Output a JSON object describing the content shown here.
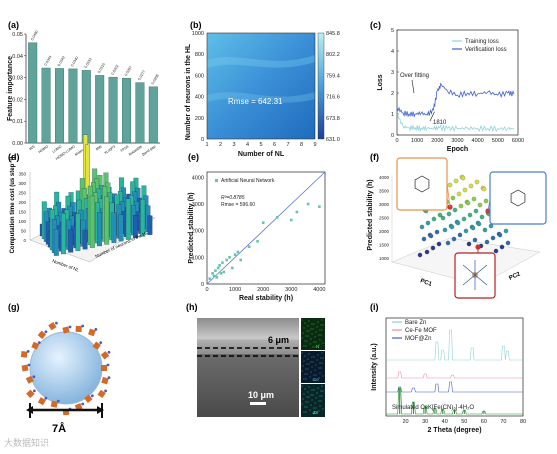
{
  "panels": {
    "a": {
      "label": "(a)"
    },
    "b": {
      "label": "(b)"
    },
    "c": {
      "label": "(c)"
    },
    "d": {
      "label": "(d)"
    },
    "e": {
      "label": "(e)"
    },
    "f": {
      "label": "(f)"
    },
    "g": {
      "label": "(g)"
    },
    "h": {
      "label": "(h)"
    },
    "i": {
      "label": "(i)"
    }
  },
  "colors": {
    "teal": "#5fa39a",
    "line_blue": "#3f5fd4",
    "line_cyan": "#8fd3dc",
    "heat_dark": "#1e66b5",
    "heat_light": "#9fdcf0",
    "scatter_green": "#67c6a6",
    "fit_line": "#5a78c8"
  },
  "chart_data": [
    {
      "id": "a",
      "type": "bar",
      "ylabel": "Feature importance",
      "ylim": [
        0,
        0.05
      ],
      "yticks": [
        "0.00",
        "0.01",
        "0.02",
        "0.03",
        "0.04",
        "0.05"
      ],
      "categories": [
        "WS",
        "HOMO",
        "LUMO",
        "HOMO-LUMO",
        "Molecular",
        "MW",
        "XLogP3",
        "TPSA",
        "Rotatable",
        "Band gap"
      ],
      "value_labels": [
        "0.0460",
        "0.0344",
        "0.0342",
        "0.0340",
        "0.0333",
        "0.0310",
        "0.0302",
        "0.0297",
        "0.0277",
        "0.0258"
      ],
      "values": [
        0.046,
        0.0344,
        0.0342,
        0.034,
        0.0333,
        0.031,
        0.0302,
        0.0297,
        0.0277,
        0.0258
      ]
    },
    {
      "id": "b",
      "type": "heatmap",
      "xlabel": "Number of NL",
      "ylabel": "Number of neurons in the HL",
      "xticks": [
        "1",
        "2",
        "3",
        "4",
        "5",
        "6",
        "7",
        "8",
        "9"
      ],
      "yticks": [
        "0",
        "200",
        "400",
        "600",
        "800",
        "1000"
      ],
      "colorbar": [
        "845.8",
        "802.2",
        "759.4",
        "716.6",
        "673.8",
        "631.0"
      ],
      "annotation": "Rmse = 642.31"
    },
    {
      "id": "c",
      "type": "line",
      "xlabel": "Epoch",
      "ylabel": "Loss",
      "xticks": [
        "0",
        "1000",
        "2000",
        "3000",
        "4000",
        "5000",
        "6000"
      ],
      "yticks": [
        "0",
        "1",
        "2",
        "3",
        "4",
        "5"
      ],
      "xlim": [
        0,
        6000
      ],
      "ylim": [
        0,
        5
      ],
      "series": [
        {
          "name": "Training loss",
          "x": [
            0,
            300,
            600,
            900,
            1200,
            1500,
            1810,
            2100,
            2500,
            3000,
            3500,
            4000,
            4500,
            5000,
            5500,
            5800
          ],
          "y": [
            1.0,
            0.4,
            0.35,
            0.35,
            0.32,
            0.33,
            0.3,
            0.34,
            0.32,
            0.3,
            0.33,
            0.31,
            0.32,
            0.3,
            0.31,
            0.3
          ]
        },
        {
          "name": "Verification loss",
          "x": [
            0,
            300,
            600,
            900,
            1200,
            1500,
            1810,
            2000,
            2200,
            2500,
            3000,
            3500,
            4000,
            4500,
            5000,
            5500,
            5800
          ],
          "y": [
            1.3,
            1.05,
            1.0,
            1.0,
            1.05,
            0.95,
            1.2,
            2.1,
            2.4,
            2.1,
            1.9,
            2.0,
            1.95,
            2.05,
            1.9,
            2.0,
            1.95
          ]
        }
      ],
      "annotations": [
        "Over fitting",
        "1810"
      ]
    },
    {
      "id": "d",
      "type": "bar",
      "ylabel": "Computation time cost (us step⁻¹)",
      "zticks": [
        "0",
        "50",
        "100",
        "150",
        "200",
        "250",
        "300",
        "350"
      ],
      "xlabel": "Number of NL",
      "ylabel2": "Number of neurons in the HL"
    },
    {
      "id": "e",
      "type": "scatter",
      "xlabel": "Real stability (h)",
      "ylabel": "Predicted stability (h)",
      "xticks": [
        "0",
        "1000",
        "2000",
        "3000",
        "4000"
      ],
      "yticks": [
        "0",
        "1000",
        "2000",
        "3000",
        "4000"
      ],
      "xlim": [
        0,
        4200
      ],
      "ylim": [
        0,
        4200
      ],
      "legend": "Artificial Neural Network",
      "annotations": [
        "R²=0.8785",
        "Rmse = 596.60"
      ],
      "series": [
        {
          "name": "Artificial Neural Network",
          "x": [
            100,
            200,
            250,
            300,
            350,
            400,
            450,
            500,
            550,
            600,
            700,
            800,
            900,
            1000,
            1100,
            1200,
            1500,
            1800,
            2000,
            2500,
            3000,
            3200,
            3600,
            4000
          ],
          "y": [
            200,
            400,
            300,
            500,
            250,
            600,
            700,
            400,
            800,
            450,
            900,
            1000,
            600,
            1100,
            1200,
            900,
            1400,
            1600,
            2300,
            2500,
            2400,
            2700,
            3000,
            2900
          ]
        }
      ]
    },
    {
      "id": "f",
      "type": "scatter",
      "zlabel": "Predicted stability (h)",
      "zticks": [
        "1000",
        "1500",
        "2000",
        "2500",
        "3000",
        "3500",
        "4000"
      ],
      "xlabel": "PC1",
      "ylabel": "PC2"
    },
    {
      "id": "i",
      "type": "line",
      "xlabel": "2 Theta (degree)",
      "ylabel": "Intensity (a.u.)",
      "xticks": [
        "20",
        "30",
        "40",
        "50",
        "60",
        "70",
        "80"
      ],
      "series": [
        {
          "name": "Bare Zn"
        },
        {
          "name": "Ce-Fe MOF"
        },
        {
          "name": "MOF@Zn"
        },
        {
          "name": "Simulated  CeK[Fe(CN)₆]·4H₂O"
        }
      ]
    }
  ],
  "texts": {
    "g_size": "7Å",
    "h_thickness": "6 μm",
    "h_scale": "10 μm",
    "h_maps": [
      "N",
      "Ce",
      "Zn"
    ],
    "watermark": "大数据知识"
  }
}
